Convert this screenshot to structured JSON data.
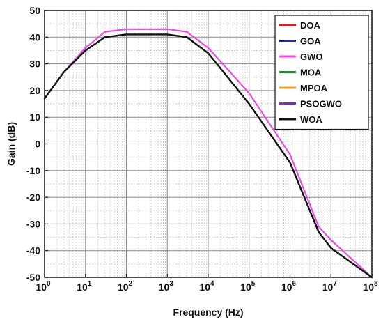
{
  "chart_data": {
    "type": "line",
    "title": "",
    "xlabel": "Frequency (Hz)",
    "ylabel": "Gain (dB)",
    "xscale": "log",
    "xlim": [
      1,
      100000000
    ],
    "ylim": [
      -50,
      50
    ],
    "x_ticks": [
      {
        "base": "10",
        "exp": "0"
      },
      {
        "base": "10",
        "exp": "1"
      },
      {
        "base": "10",
        "exp": "2"
      },
      {
        "base": "10",
        "exp": "3"
      },
      {
        "base": "10",
        "exp": "4"
      },
      {
        "base": "10",
        "exp": "5"
      },
      {
        "base": "10",
        "exp": "6"
      },
      {
        "base": "10",
        "exp": "7"
      },
      {
        "base": "10",
        "exp": "8"
      }
    ],
    "y_ticks": [
      "50",
      "40",
      "30",
      "20",
      "10",
      "0",
      "-10",
      "-20",
      "-30",
      "-40",
      "-50"
    ],
    "grid": true,
    "legend_position": "top-right",
    "series": [
      {
        "name": "DOA",
        "color": "#e8141e",
        "x": [
          1,
          3,
          10,
          30,
          100,
          1000,
          3000,
          10000,
          100000,
          1000000,
          5000000,
          10000000,
          100000000
        ],
        "y": [
          17,
          27,
          35,
          40,
          41,
          41,
          40,
          34,
          15,
          -7,
          -33,
          -39,
          -50
        ]
      },
      {
        "name": "GOA",
        "color": "#1c2f9c",
        "x": [
          1,
          3,
          10,
          30,
          100,
          1000,
          3000,
          10000,
          100000,
          1000000,
          5000000,
          10000000,
          100000000
        ],
        "y": [
          17,
          27,
          35,
          40,
          41,
          41,
          40,
          34,
          15,
          -7,
          -33,
          -39,
          -50
        ]
      },
      {
        "name": "GWO",
        "color": "#e34fe3",
        "x": [
          1,
          3,
          10,
          30,
          100,
          1000,
          3000,
          10000,
          100000,
          1000000,
          5000000,
          10000000,
          100000000
        ],
        "y": [
          17,
          27,
          36,
          42,
          43,
          43,
          42,
          36,
          19,
          -4,
          -31,
          -36,
          -50
        ]
      },
      {
        "name": "MOA",
        "color": "#1f8a2e",
        "x": [
          1,
          3,
          10,
          30,
          100,
          1000,
          3000,
          10000,
          100000,
          1000000,
          5000000,
          10000000,
          100000000
        ],
        "y": [
          17,
          27,
          35,
          40,
          41,
          41,
          40,
          34,
          15,
          -7,
          -33,
          -39,
          -50
        ]
      },
      {
        "name": "MPOA",
        "color": "#f0a020",
        "x": [
          1,
          3,
          10,
          30,
          100,
          1000,
          3000,
          10000,
          100000,
          1000000,
          5000000,
          10000000,
          100000000
        ],
        "y": [
          17,
          27,
          35,
          40,
          41,
          41,
          40,
          34,
          15,
          -7,
          -33,
          -39,
          -50
        ]
      },
      {
        "name": "PSOGWO",
        "color": "#7a2cc4",
        "x": [
          1,
          3,
          10,
          30,
          100,
          1000,
          3000,
          10000,
          100000,
          1000000,
          5000000,
          10000000,
          100000000
        ],
        "y": [
          17,
          27,
          35,
          40,
          41,
          41,
          40,
          34,
          15,
          -7,
          -33,
          -39,
          -50
        ]
      },
      {
        "name": "WOA",
        "color": "#111111",
        "x": [
          1,
          3,
          10,
          30,
          100,
          1000,
          3000,
          10000,
          100000,
          1000000,
          5000000,
          10000000,
          100000000
        ],
        "y": [
          17,
          27,
          35,
          40,
          41,
          41,
          40,
          34,
          15,
          -7,
          -33,
          -39,
          -50
        ]
      }
    ]
  }
}
